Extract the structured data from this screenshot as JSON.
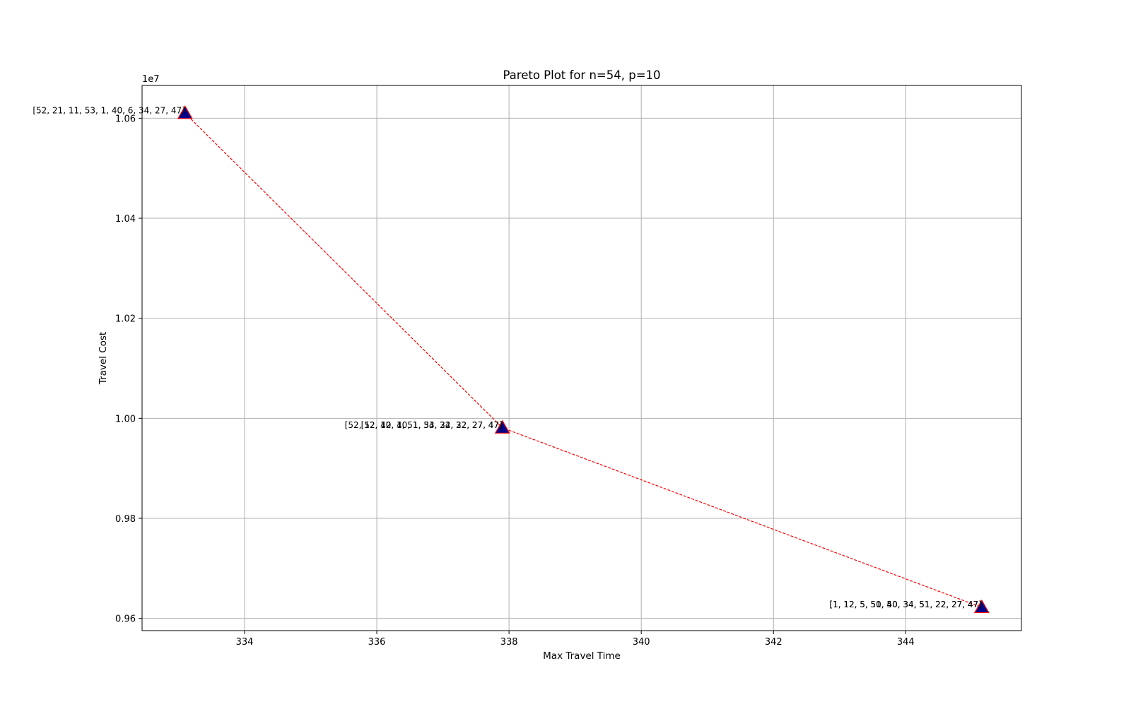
{
  "chart_data": {
    "type": "scatter",
    "title": "Pareto Plot for n=54, p=10",
    "xlabel": "Max Travel Time",
    "ylabel": "Travel Cost",
    "y_offset_label": "1e7",
    "y_scale_factor": 10000000,
    "xlim": [
      332.45,
      345.75
    ],
    "ylim": [
      0.95755,
      1.06655
    ],
    "x_ticks": [
      334,
      336,
      338,
      340,
      342,
      344
    ],
    "y_ticks": [
      0.96,
      0.98,
      1.0,
      1.02,
      1.04,
      1.06
    ],
    "x_tick_labels": [
      "334",
      "336",
      "338",
      "340",
      "342",
      "344"
    ],
    "y_tick_labels": [
      "0.96",
      "0.98",
      "1.00",
      "1.02",
      "1.04",
      "1.06"
    ],
    "grid": true,
    "line_style": "dashed",
    "line_color": "#ff0000",
    "marker": "triangle",
    "marker_fill": "#00008b",
    "marker_edge": "#ff0000",
    "points": [
      {
        "x": 333.1,
        "y": 1.061,
        "labels": [
          "[52, 21, 11, 53, 1, 40, 6, 34, 27, 47]"
        ]
      },
      {
        "x": 337.9,
        "y": 0.9981,
        "labels": [
          "[52, 12, 40, 1, 53, 22, 32, 27, 47]",
          "[52, 12, 40, 1, 51, 34, 34, 22, 27, 47]"
        ]
      },
      {
        "x": 345.15,
        "y": 0.9622,
        "labels": [
          "[1, 12, 5, 50, 40, 34, 51, 22, 27, 47]",
          "[1, 12, 5, 51, 50, 34, 51, 22, 27, 47]"
        ]
      }
    ]
  }
}
